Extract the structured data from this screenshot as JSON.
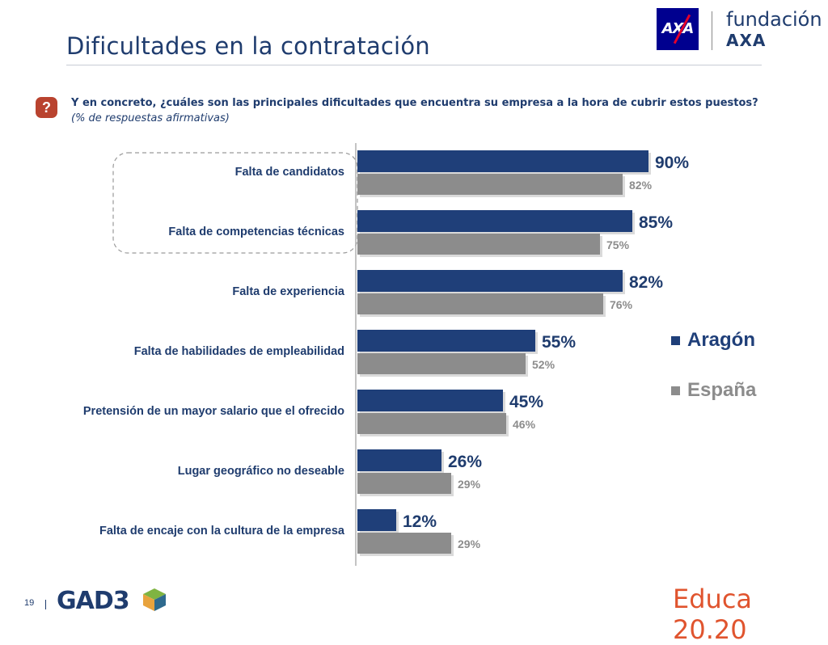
{
  "title": "Dificultades en la contratación",
  "brand": {
    "line1": "fundación",
    "line2": "AXA",
    "logo": "AXA"
  },
  "question": {
    "icon": "?",
    "text": "Y en concreto, ¿cuáles son las principales dificultades que encuentra su empresa a la hora de cubrir estos puestos?",
    "note": "(% de respuestas afirmativas)"
  },
  "chart_data": {
    "type": "bar",
    "orientation": "horizontal",
    "categories": [
      "Falta de candidatos",
      "Falta de competencias técnicas",
      "Falta de experiencia",
      "Falta de habilidades de empleabilidad",
      "Pretensión de un mayor salario que el ofrecido",
      "Lugar geográfico no deseable",
      "Falta de encaje con la cultura de la empresa"
    ],
    "series": [
      {
        "name": "Aragón",
        "values": [
          90,
          85,
          82,
          55,
          45,
          26,
          12
        ],
        "labels": [
          "90%",
          "85%",
          "82%",
          "55%",
          "45%",
          "26%",
          "12%"
        ],
        "color": "#1f3f79"
      },
      {
        "name": "España",
        "values": [
          82,
          75,
          76,
          52,
          46,
          29,
          29
        ],
        "labels": [
          "82%",
          "75%",
          "76%",
          "52%",
          "46%",
          "29%",
          "29%"
        ],
        "color": "#8c8c8c"
      }
    ],
    "xlim": [
      0,
      100
    ],
    "legend": "right",
    "highlight": "first two categories enclosed in a dashed rounded box"
  },
  "footer": {
    "page": "19",
    "logo_left": "GAD3",
    "logo_right": "Educa 20.20"
  }
}
